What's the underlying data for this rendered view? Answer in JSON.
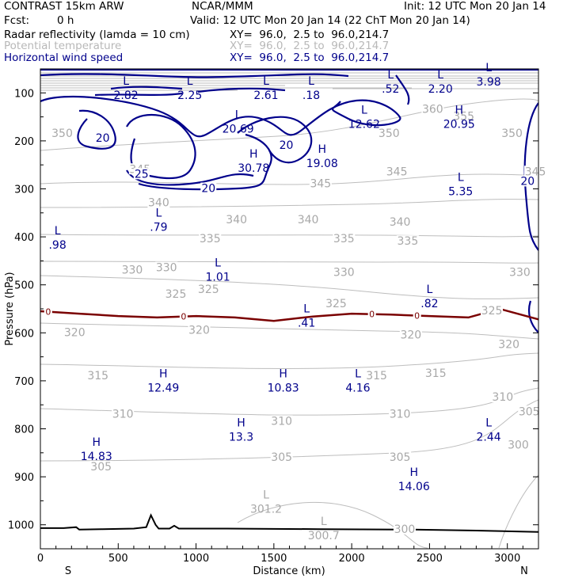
{
  "header": {
    "model": "CONTRAST 15km ARW",
    "org": "NCAR/MMM",
    "init": "Init: 12 UTC Mon 20 Jan 14",
    "fcst_label": "Fcst:",
    "fcst_value": "0 h",
    "valid": "Valid: 12 UTC Mon 20 Jan 14 (22 ChT Mon 20 Jan 14)"
  },
  "fields": [
    {
      "name": "Radar reflectivity (lamda = 10 cm)",
      "xy": "XY=  96.0,  2.5 to  96.0,214.7",
      "color": "#000000"
    },
    {
      "name": "Potential temperature",
      "xy": "XY=  96.0,  2.5 to  96.0,214.7",
      "color": "#b8b8b8"
    },
    {
      "name": "Horizontal wind speed",
      "xy": "XY=  96.0,  2.5 to  96.0,214.7",
      "color": "#00008b"
    }
  ],
  "chart_data": {
    "type": "cross-section contour",
    "xlabel": "Distance (km)",
    "ylabel": "Pressure (hPa)",
    "xlim": [
      0,
      3200
    ],
    "ylim": [
      1050,
      50
    ],
    "x_ticks": [
      "0",
      "500",
      "1000",
      "1500",
      "2000",
      "2500",
      "3000"
    ],
    "y_ticks": [
      "100",
      "200",
      "300",
      "400",
      "500",
      "600",
      "700",
      "800",
      "900",
      "1000"
    ],
    "end_labels": {
      "left": "S",
      "right": "N"
    },
    "theta_labels": [
      {
        "text": "350",
        "x": 140,
        "p": 185
      },
      {
        "text": "360",
        "x": 2520,
        "p": 135
      },
      {
        "text": "355",
        "x": 2720,
        "p": 150
      },
      {
        "text": "350",
        "x": 2240,
        "p": 185
      },
      {
        "text": "350",
        "x": 3030,
        "p": 185
      },
      {
        "text": "345",
        "x": 640,
        "p": 260
      },
      {
        "text": "345",
        "x": 1800,
        "p": 290
      },
      {
        "text": "345",
        "x": 2290,
        "p": 265
      },
      {
        "text": "345",
        "x": 3180,
        "p": 265
      },
      {
        "text": "340",
        "x": 760,
        "p": 330
      },
      {
        "text": "340",
        "x": 1260,
        "p": 365
      },
      {
        "text": "340",
        "x": 1720,
        "p": 365
      },
      {
        "text": "340",
        "x": 2310,
        "p": 370
      },
      {
        "text": "335",
        "x": 1090,
        "p": 405
      },
      {
        "text": "335",
        "x": 1950,
        "p": 405
      },
      {
        "text": "335",
        "x": 2360,
        "p": 410
      },
      {
        "text": "330",
        "x": 590,
        "p": 470
      },
      {
        "text": "330",
        "x": 810,
        "p": 465
      },
      {
        "text": "330",
        "x": 1950,
        "p": 475
      },
      {
        "text": "330",
        "x": 3080,
        "p": 475
      },
      {
        "text": "325",
        "x": 870,
        "p": 520
      },
      {
        "text": "325",
        "x": 1080,
        "p": 510
      },
      {
        "text": "325",
        "x": 1900,
        "p": 540
      },
      {
        "text": "325",
        "x": 2900,
        "p": 555
      },
      {
        "text": "320",
        "x": 220,
        "p": 600
      },
      {
        "text": "320",
        "x": 1020,
        "p": 595
      },
      {
        "text": "320",
        "x": 2380,
        "p": 605
      },
      {
        "text": "320",
        "x": 3010,
        "p": 625
      },
      {
        "text": "315",
        "x": 370,
        "p": 690
      },
      {
        "text": "315",
        "x": 2160,
        "p": 690
      },
      {
        "text": "315",
        "x": 2540,
        "p": 685
      },
      {
        "text": "310",
        "x": 530,
        "p": 770
      },
      {
        "text": "310",
        "x": 1550,
        "p": 785
      },
      {
        "text": "310",
        "x": 2310,
        "p": 770
      },
      {
        "text": "310",
        "x": 2970,
        "p": 735
      },
      {
        "text": "305",
        "x": 390,
        "p": 880
      },
      {
        "text": "305",
        "x": 1550,
        "p": 860
      },
      {
        "text": "305",
        "x": 2310,
        "p": 860
      },
      {
        "text": "305",
        "x": 3140,
        "p": 765
      },
      {
        "text": "300",
        "x": 3070,
        "p": 835
      },
      {
        "text": "300",
        "x": 2340,
        "p": 1010
      }
    ],
    "theta_extrema": [
      {
        "kind": "L",
        "value": "301.2",
        "x": 1450,
        "p": 955
      },
      {
        "kind": "L",
        "value": "300.7",
        "x": 1820,
        "p": 1010
      }
    ],
    "wind_extrema": [
      {
        "kind": "L",
        "value": "2.82",
        "x": 550,
        "p": 93
      },
      {
        "kind": "L",
        "value": "2.25",
        "x": 960,
        "p": 93
      },
      {
        "kind": "L",
        "value": "2.61",
        "x": 1450,
        "p": 93
      },
      {
        "kind": "L",
        "value": ".18",
        "x": 1740,
        "p": 93
      },
      {
        "kind": "L",
        "value": ".52",
        "x": 2250,
        "p": 80
      },
      {
        "kind": "L",
        "value": "2.20",
        "x": 2570,
        "p": 80
      },
      {
        "kind": "L",
        "value": "3.98",
        "x": 2880,
        "p": 65
      },
      {
        "kind": "L",
        "value": "20.69",
        "x": 1270,
        "p": 163
      },
      {
        "kind": "L",
        "value": "12.62",
        "x": 2080,
        "p": 153
      },
      {
        "kind": "H",
        "value": "20.95",
        "x": 2690,
        "p": 153
      },
      {
        "kind": "H",
        "value": "30.78",
        "x": 1370,
        "p": 245
      },
      {
        "kind": "H",
        "value": "19.08",
        "x": 1810,
        "p": 235
      },
      {
        "kind": "L",
        "value": "5.35",
        "x": 2700,
        "p": 293
      },
      {
        "kind": "L",
        "value": ".79",
        "x": 760,
        "p": 368
      },
      {
        "kind": "L",
        "value": ".98",
        "x": 110,
        "p": 405
      },
      {
        "kind": "L",
        "value": "1.01",
        "x": 1140,
        "p": 472
      },
      {
        "kind": "L",
        "value": ".82",
        "x": 2500,
        "p": 527
      },
      {
        "kind": "L",
        "value": ".41",
        "x": 1710,
        "p": 567
      },
      {
        "kind": "H",
        "value": "12.49",
        "x": 790,
        "p": 703
      },
      {
        "kind": "H",
        "value": "10.83",
        "x": 1560,
        "p": 703
      },
      {
        "kind": "L",
        "value": "4.16",
        "x": 2040,
        "p": 703
      },
      {
        "kind": "H",
        "value": "13.3",
        "x": 1290,
        "p": 805
      },
      {
        "kind": "L",
        "value": "2.44",
        "x": 2880,
        "p": 805
      },
      {
        "kind": "H",
        "value": "14.83",
        "x": 360,
        "p": 845
      },
      {
        "kind": "H",
        "value": "14.06",
        "x": 2400,
        "p": 908
      }
    ],
    "wind_contour_labels": [
      {
        "text": "20",
        "x": 400,
        "p": 195
      },
      {
        "text": "25",
        "x": 650,
        "p": 270
      },
      {
        "text": "20",
        "x": 1080,
        "p": 300
      },
      {
        "text": "20",
        "x": 1580,
        "p": 210
      },
      {
        "text": "20",
        "x": 3130,
        "p": 285
      }
    ],
    "zero_isotherm": {
      "label": "0",
      "label_x": [
        50,
        920,
        2130,
        2420
      ],
      "x": [
        0,
        250,
        500,
        750,
        1000,
        1250,
        1500,
        1750,
        2000,
        2250,
        2500,
        2750,
        2950,
        3200
      ],
      "p": [
        555,
        560,
        565,
        568,
        565,
        568,
        575,
        566,
        560,
        562,
        565,
        568,
        550,
        572
      ]
    },
    "terrain": {
      "x": [
        0,
        150,
        230,
        250,
        400,
        600,
        680,
        710,
        740,
        760,
        830,
        860,
        890,
        1200,
        1800,
        2400,
        2800,
        3200
      ],
      "p": [
        1007,
        1007,
        1005,
        1010,
        1009,
        1008,
        1005,
        980,
        1000,
        1008,
        1008,
        1002,
        1008,
        1008,
        1009,
        1010,
        1012,
        1015
      ]
    }
  }
}
